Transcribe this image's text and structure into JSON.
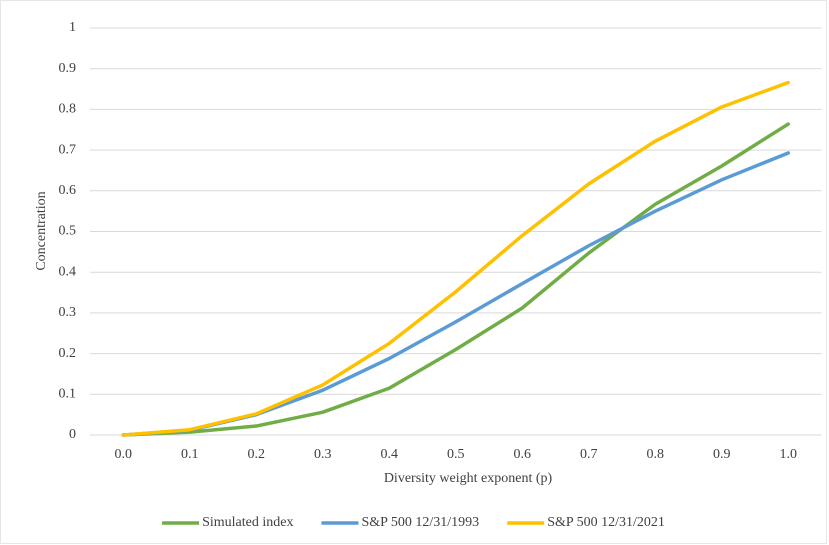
{
  "chart_data": {
    "type": "line",
    "x_label": "Diversity weight exponent (p)",
    "y_label": "Concentration",
    "categories": [
      "0.0",
      "0.1",
      "0.2",
      "0.3",
      "0.4",
      "0.5",
      "0.6",
      "0.7",
      "0.8",
      "0.9",
      "1.0"
    ],
    "series": [
      {
        "name": "Simulated index",
        "color": "#70ad47",
        "values": [
          0,
          0.007,
          0.022,
          0.056,
          0.115,
          0.21,
          0.312,
          0.447,
          0.567,
          0.661,
          0.764
        ]
      },
      {
        "name": "S&P 500 12/31/1993",
        "color": "#5b9bd5",
        "values": [
          0,
          0.012,
          0.05,
          0.11,
          0.188,
          0.278,
          0.372,
          0.465,
          0.55,
          0.627,
          0.693
        ]
      },
      {
        "name": "S&P 500 12/31/2021",
        "color": "#ffc000",
        "values": [
          0,
          0.013,
          0.052,
          0.123,
          0.225,
          0.352,
          0.49,
          0.617,
          0.722,
          0.806,
          0.866
        ]
      }
    ],
    "ylim": [
      0,
      1
    ],
    "yticks": [
      0,
      0.1,
      0.2,
      0.3,
      0.4,
      0.5,
      0.6,
      0.7,
      0.8,
      0.9,
      1
    ],
    "grid": true,
    "legend": "bottom"
  }
}
